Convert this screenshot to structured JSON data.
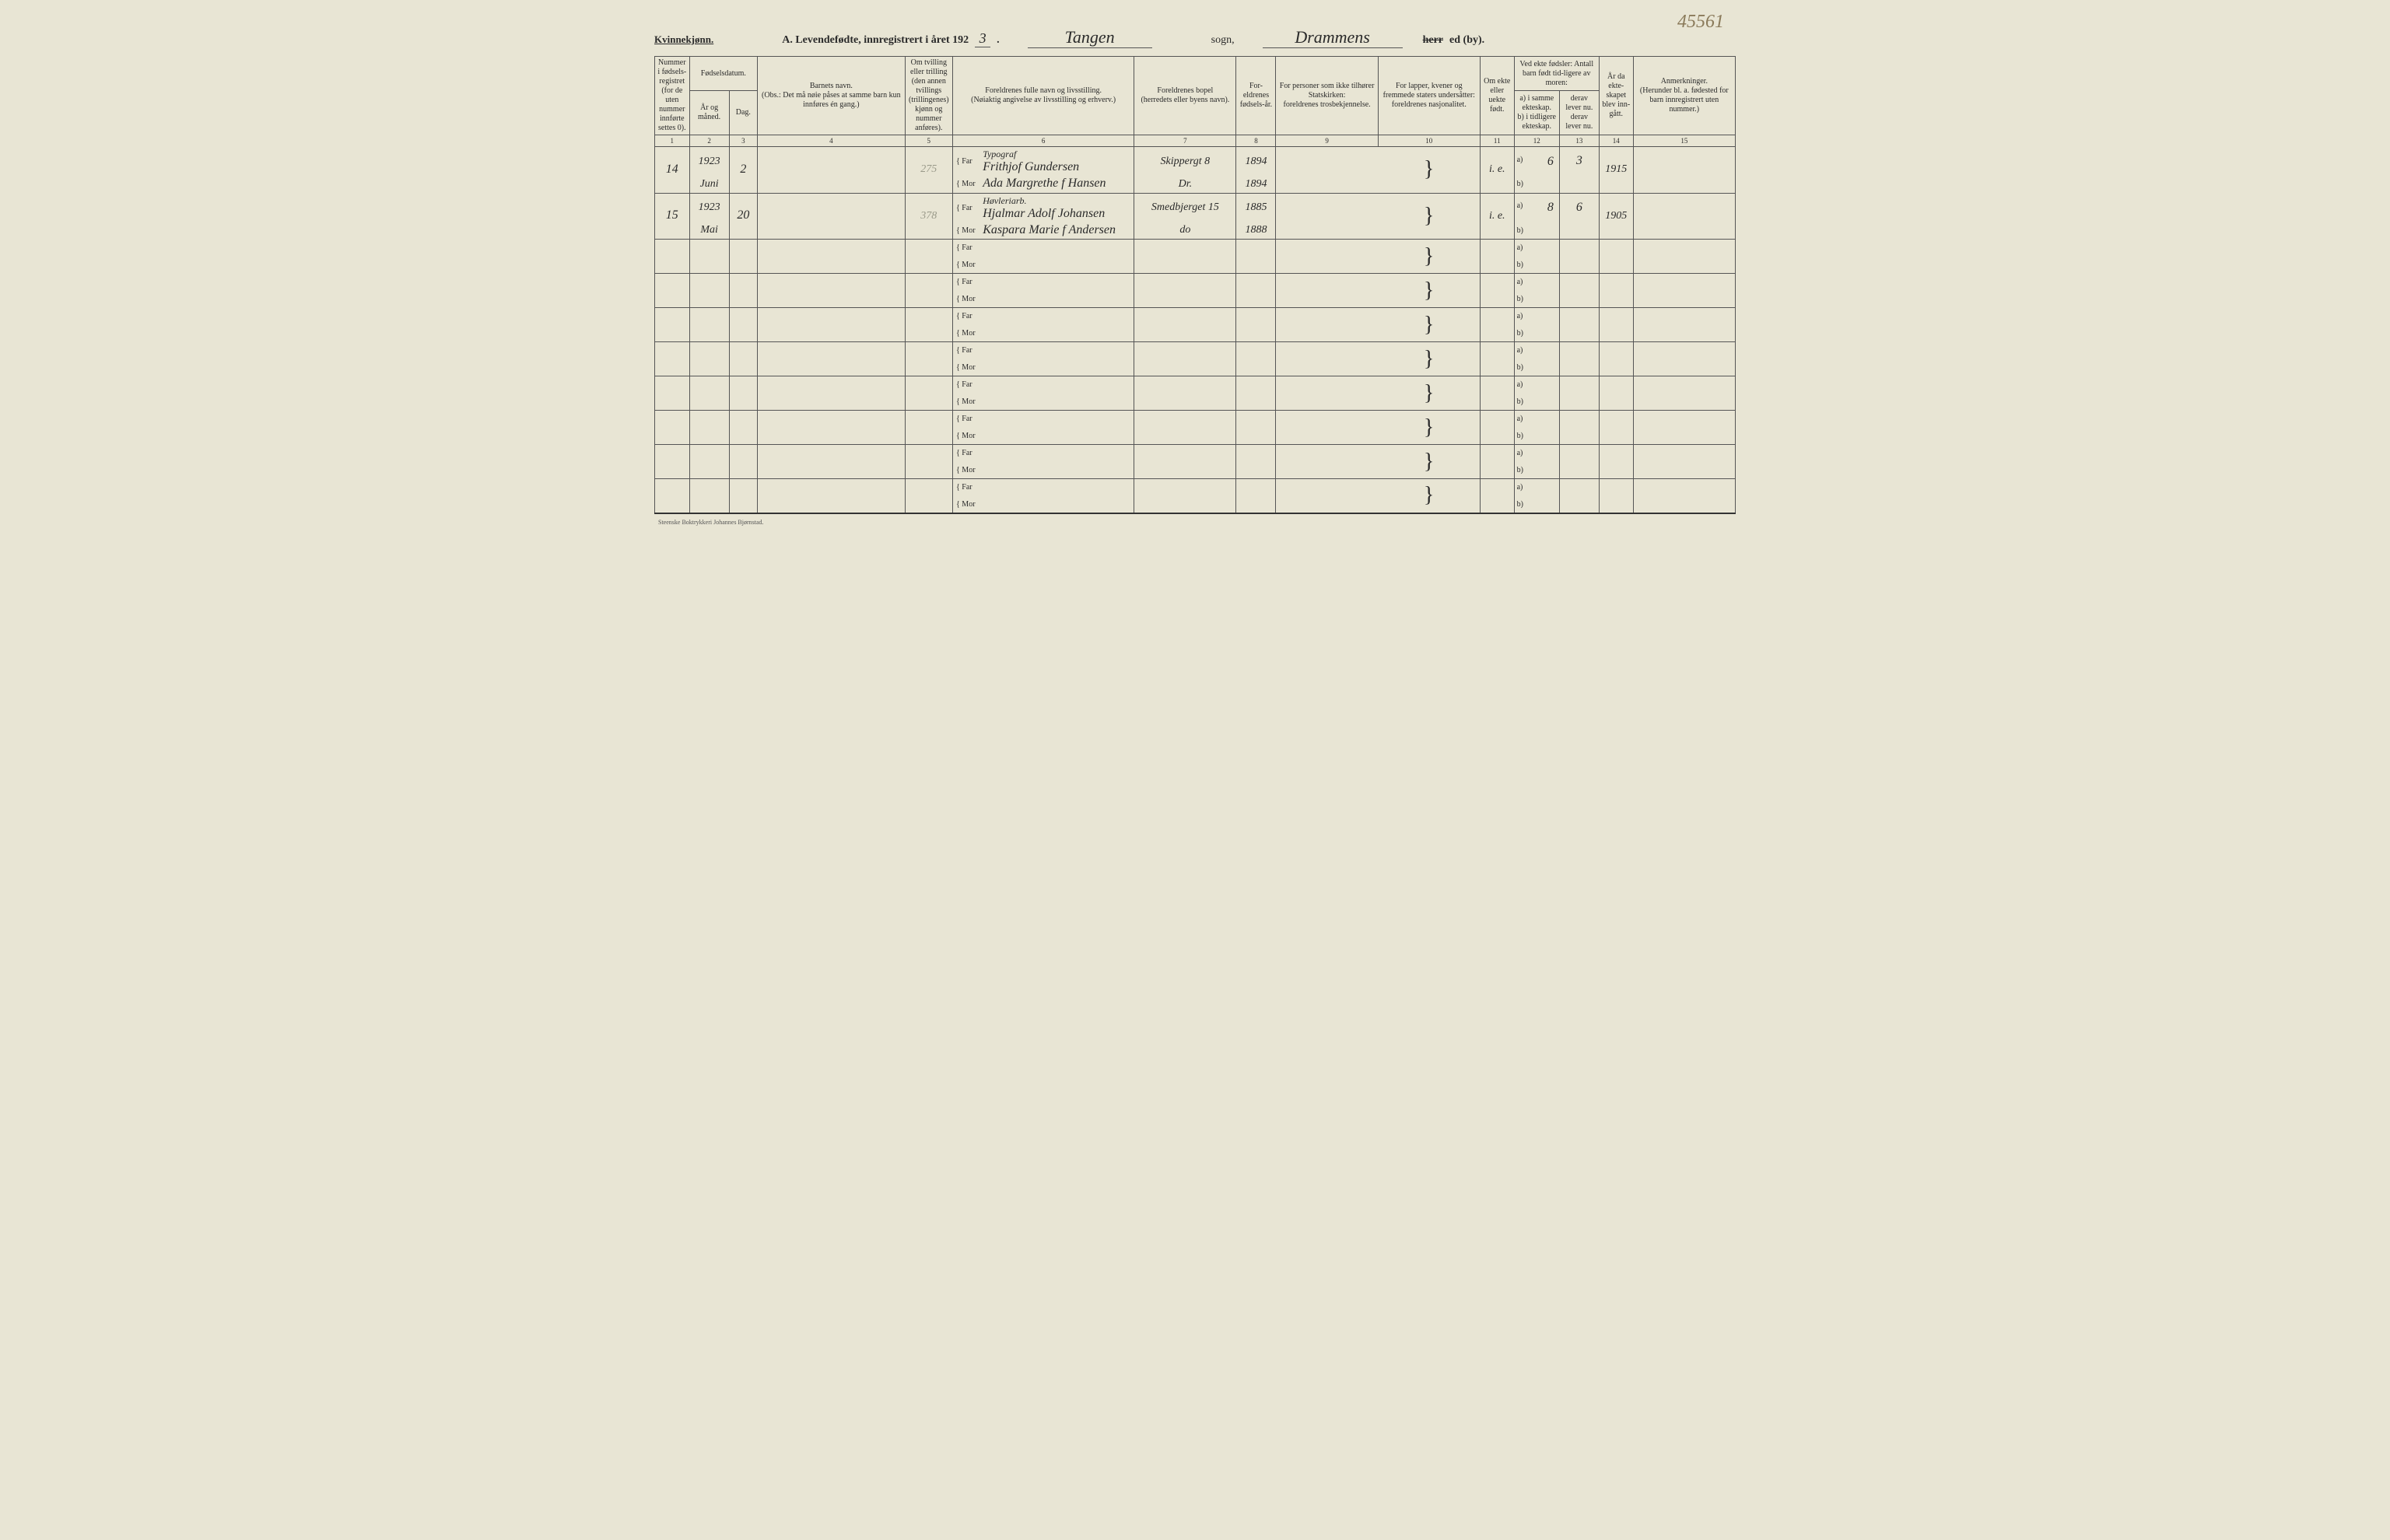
{
  "header": {
    "gender": "Kvinnekjønn.",
    "title_prefix": "A.  Levendefødte, innregistrert i året 192",
    "year_suffix": "3",
    "sogn": "Tangen",
    "sogn_label": "sogn,",
    "herred": "Drammens",
    "herred_strike": "herr",
    "herred_label": "ed (by).",
    "page_number": "45561"
  },
  "columns": {
    "c1": {
      "label": "Nummer i fødsels-registret (for de uten nummer innførte settes 0).",
      "num": "1"
    },
    "c2a": {
      "label": "Fødselsdatum."
    },
    "c2": {
      "label": "År og måned.",
      "num": "2"
    },
    "c3": {
      "label": "Dag.",
      "num": "3"
    },
    "c4": {
      "label": "Barnets navn.",
      "sub": "(Obs.: Det må nøie påses at samme barn kun innføres én gang.)",
      "num": "4"
    },
    "c5": {
      "label": "Om tvilling eller trilling (den annen tvillings (trillingenes) kjønn og nummer anføres).",
      "num": "5"
    },
    "c6": {
      "label": "Foreldrenes fulle navn og livsstilling.",
      "sub": "(Nøiaktig angivelse av livsstilling og erhverv.)",
      "num": "6"
    },
    "c7": {
      "label": "Foreldrenes bopel",
      "sub": "(herredets eller byens navn).",
      "num": "7"
    },
    "c8": {
      "label": "For-eldrenes fødsels-år.",
      "num": "8"
    },
    "c9": {
      "label": "For personer som ikke tilhører Statskirken:",
      "sub": "foreldrenes trosbekjennelse.",
      "num": "9"
    },
    "c10": {
      "label": "For lapper, kvener og fremmede staters undersåtter:",
      "sub": "foreldrenes nasjonalitet.",
      "num": "10"
    },
    "c11": {
      "label": "Om ekte eller uekte født.",
      "num": "11"
    },
    "c12_13": {
      "label": "Ved ekte fødsler: Antall barn født tid-ligere av moren:"
    },
    "c12": {
      "label": "a) i samme ekteskap.",
      "sub": "b) i tidligere ekteskap.",
      "num": "12"
    },
    "c13": {
      "label": "derav lever nu.",
      "sub": "derav lever nu.",
      "num": "13"
    },
    "c14": {
      "label": "År da ekte-skapet blev inn-gått.",
      "num": "14"
    },
    "c15": {
      "label": "Anmerkninger.",
      "sub": "(Herunder bl. a. fødested for barn innregistrert uten nummer.)",
      "num": "15"
    }
  },
  "far_label": "Far",
  "mor_label": "Mor",
  "a_label": "a)",
  "b_label": "b)",
  "entries": [
    {
      "num": "14",
      "year": "1923",
      "month": "Juni",
      "day": "2",
      "tvilling": "275",
      "occupation": "Typograf",
      "far": "Frithjof Gundersen",
      "mor": "Ada Margrethe f Hansen",
      "bopel_far": "Skippergt 8",
      "bopel_mor": "Dr.",
      "far_year": "1894",
      "mor_year": "1894",
      "ekte": "i. e.",
      "a_val": "6",
      "derav": "3",
      "ekteaar": "1915"
    },
    {
      "num": "15",
      "year": "1923",
      "month": "Mai",
      "day": "20",
      "tvilling": "378",
      "occupation": "Høvleriarb.",
      "far": "Hjalmar Adolf Johansen",
      "mor": "Kaspara Marie f Andersen",
      "bopel_far": "Smedbjerget 15",
      "bopel_mor": "do",
      "far_year": "1885",
      "mor_year": "1888",
      "ekte": "i. e.",
      "a_val": "8",
      "derav": "6",
      "ekteaar": "1905"
    }
  ],
  "empty_rows": 8,
  "footer": "Steenske Boktrykkeri Johannes Bjørnstad."
}
